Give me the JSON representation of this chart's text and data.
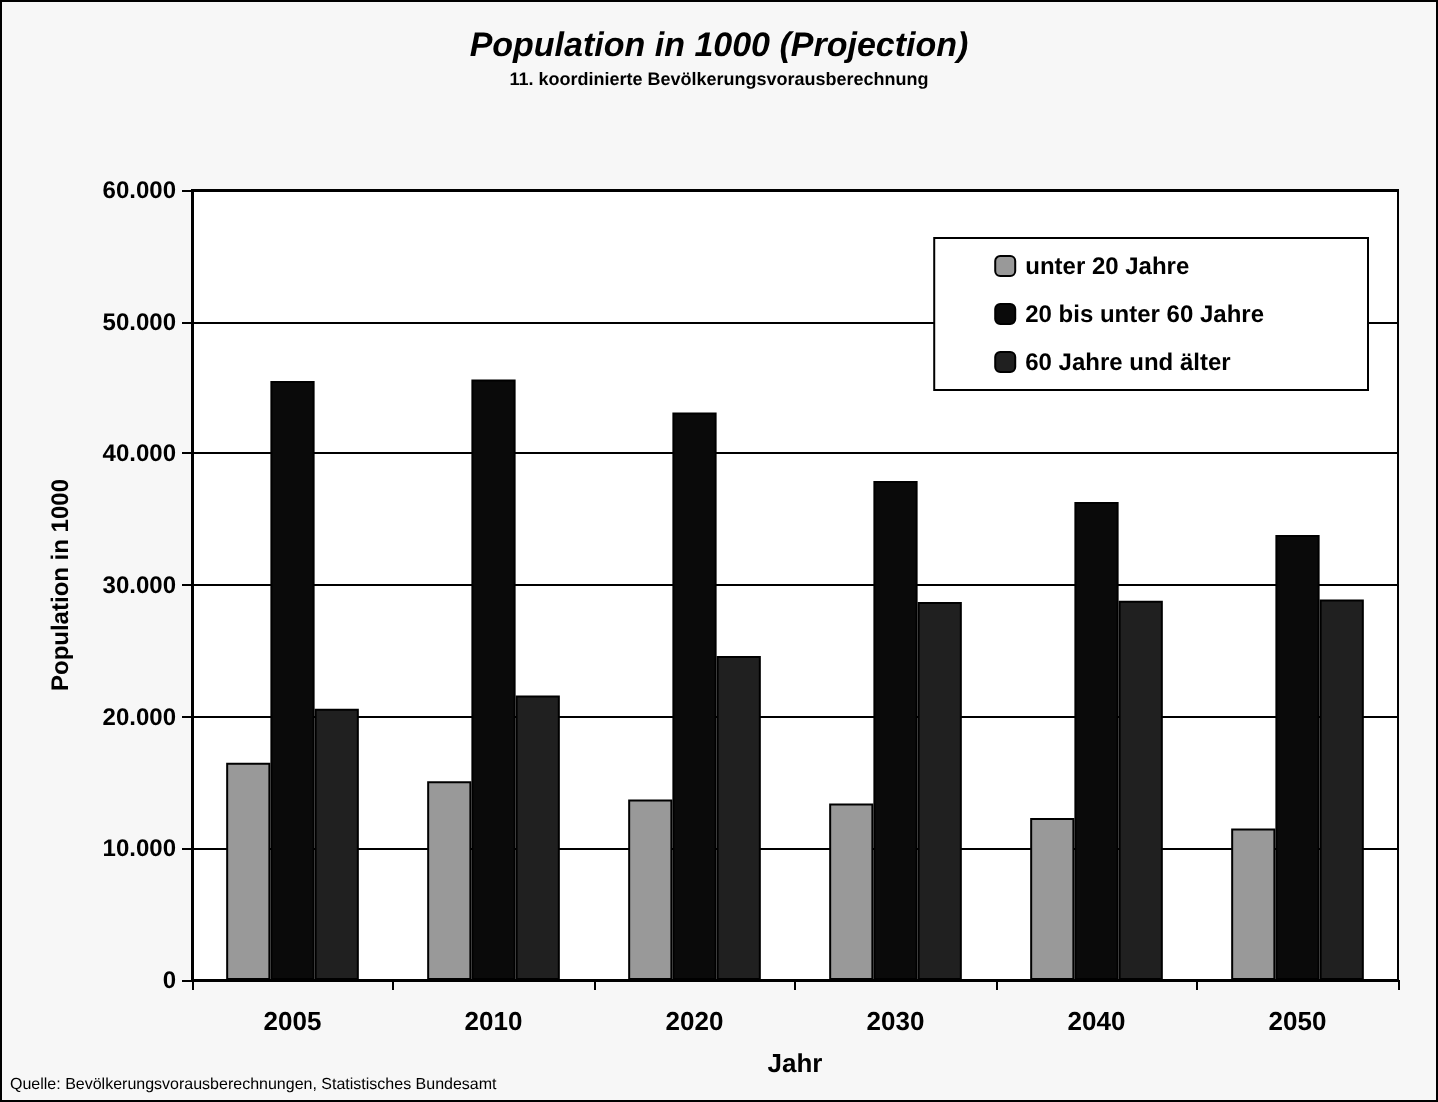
{
  "chart_data": {
    "type": "bar",
    "title": "Population in 1000 (Projection)",
    "subtitle": "11. koordinierte Bevölkerungsvorausberechnung",
    "xlabel": "Jahr",
    "ylabel": "Population in 1000",
    "annotations": [
      "Quelle: Bevölkerungsvorausberechnungen, Statistisches Bundesamt"
    ],
    "categories": [
      "2005",
      "2010",
      "2020",
      "2030",
      "2040",
      "2050"
    ],
    "series": [
      {
        "name": "unter 20 Jahre",
        "color": "#999999",
        "values": [
          16500,
          15100,
          13700,
          13400,
          12300,
          11500
        ]
      },
      {
        "name": "20 bis unter 60 Jahre",
        "color": "#0a0a0a",
        "values": [
          45500,
          45600,
          43100,
          37900,
          36300,
          33800
        ]
      },
      {
        "name": "60 Jahre und älter",
        "color": "#202020",
        "values": [
          20600,
          21600,
          24600,
          28700,
          28800,
          28900
        ]
      }
    ],
    "ylim": [
      0,
      60000
    ],
    "yticks": [
      {
        "value": 0,
        "label": "0"
      },
      {
        "value": 10000,
        "label": "10.000"
      },
      {
        "value": 20000,
        "label": "20.000"
      },
      {
        "value": 30000,
        "label": "30.000"
      },
      {
        "value": 40000,
        "label": "40.000"
      },
      {
        "value": 50000,
        "label": "50.000"
      },
      {
        "value": 60000,
        "label": "60.000"
      }
    ],
    "grid": "y",
    "legend": "top right"
  }
}
